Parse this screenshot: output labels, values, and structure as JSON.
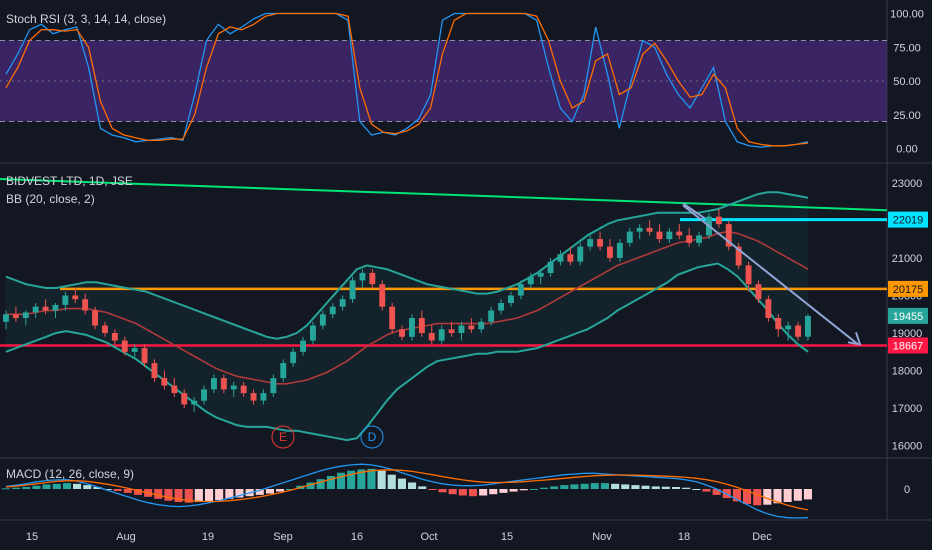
{
  "chart_data": [
    {
      "panel": "stoch_rsi",
      "type": "line",
      "title": "Stoch RSI (3, 3, 14, 14, close)",
      "ylim": [
        -10,
        110
      ],
      "yticks": [
        "100.00",
        "75.00",
        "50.00",
        "25.00",
        "0.00"
      ],
      "band": {
        "upper": 80,
        "lower": 20,
        "color": "#4a2a7a"
      },
      "series": [
        {
          "color": "#2196f3",
          "values": [
            55,
            70,
            88,
            92,
            85,
            88,
            90,
            60,
            15,
            10,
            8,
            5,
            6,
            7,
            8,
            6,
            40,
            80,
            92,
            85,
            90,
            96,
            100,
            100,
            100,
            100,
            100,
            100,
            100,
            95,
            20,
            10,
            12,
            10,
            15,
            22,
            40,
            95,
            100,
            100,
            100,
            100,
            100,
            100,
            100,
            95,
            60,
            30,
            20,
            40,
            90,
            55,
            15,
            50,
            80,
            75,
            55,
            40,
            30,
            45,
            60,
            20,
            5,
            2,
            1,
            2,
            2,
            3,
            5
          ]
        },
        {
          "color": "#ff6d00",
          "values": [
            45,
            60,
            80,
            88,
            88,
            87,
            88,
            75,
            35,
            15,
            10,
            8,
            6,
            6,
            7,
            7,
            25,
            60,
            85,
            90,
            88,
            92,
            98,
            100,
            100,
            100,
            100,
            100,
            100,
            98,
            45,
            18,
            12,
            11,
            13,
            18,
            30,
            70,
            95,
            100,
            100,
            100,
            100,
            100,
            100,
            98,
            80,
            50,
            30,
            35,
            65,
            70,
            40,
            45,
            70,
            78,
            65,
            50,
            38,
            40,
            55,
            45,
            15,
            5,
            3,
            2,
            2,
            3,
            4
          ]
        }
      ]
    },
    {
      "panel": "price",
      "type": "candlestick",
      "title": "BIDVEST LTD, 1D, JSE",
      "subtitle": "BB (20, close, 2)",
      "ylim": [
        15700,
        23500
      ],
      "yticks": [
        "23000",
        "22000",
        "21000",
        "20000",
        "19000",
        "18000",
        "17000",
        "16000"
      ],
      "candles": [
        [
          19300,
          19600,
          19100,
          19500
        ],
        [
          19500,
          19700,
          19300,
          19400
        ],
        [
          19400,
          19600,
          19200,
          19550
        ],
        [
          19550,
          19800,
          19400,
          19700
        ],
        [
          19700,
          19900,
          19500,
          19600
        ],
        [
          19600,
          19800,
          19400,
          19750
        ],
        [
          19750,
          20100,
          19600,
          20000
        ],
        [
          20000,
          20200,
          19800,
          19900
        ],
        [
          19900,
          20050,
          19500,
          19600
        ],
        [
          19600,
          19700,
          19100,
          19200
        ],
        [
          19200,
          19300,
          18900,
          19000
        ],
        [
          19000,
          19100,
          18700,
          18800
        ],
        [
          18800,
          18900,
          18400,
          18500
        ],
        [
          18500,
          18700,
          18300,
          18600
        ],
        [
          18600,
          18700,
          18100,
          18200
        ],
        [
          18200,
          18300,
          17700,
          17800
        ],
        [
          17800,
          18000,
          17500,
          17600
        ],
        [
          17600,
          17800,
          17300,
          17400
        ],
        [
          17400,
          17500,
          17000,
          17100
        ],
        [
          17100,
          17300,
          16900,
          17200
        ],
        [
          17200,
          17600,
          17100,
          17500
        ],
        [
          17500,
          17900,
          17400,
          17800
        ],
        [
          17800,
          17900,
          17400,
          17500
        ],
        [
          17500,
          17700,
          17300,
          17600
        ],
        [
          17600,
          17700,
          17300,
          17400
        ],
        [
          17400,
          17500,
          17100,
          17200
        ],
        [
          17200,
          17500,
          17100,
          17400
        ],
        [
          17400,
          17900,
          17300,
          17800
        ],
        [
          17800,
          18300,
          17700,
          18200
        ],
        [
          18200,
          18600,
          18100,
          18500
        ],
        [
          18500,
          18900,
          18400,
          18800
        ],
        [
          18800,
          19300,
          18700,
          19200
        ],
        [
          19200,
          19600,
          19100,
          19500
        ],
        [
          19500,
          19800,
          19400,
          19700
        ],
        [
          19700,
          20000,
          19600,
          19900
        ],
        [
          19900,
          20500,
          19800,
          20400
        ],
        [
          20400,
          20700,
          20200,
          20600
        ],
        [
          20600,
          20700,
          20200,
          20300
        ],
        [
          20300,
          20400,
          19600,
          19700
        ],
        [
          19700,
          19800,
          19000,
          19100
        ],
        [
          19100,
          19200,
          18800,
          18900
        ],
        [
          18900,
          19500,
          18800,
          19400
        ],
        [
          19400,
          19600,
          18900,
          19000
        ],
        [
          19000,
          19200,
          18700,
          18800
        ],
        [
          18800,
          19200,
          18700,
          19100
        ],
        [
          19100,
          19300,
          18900,
          19000
        ],
        [
          19000,
          19300,
          18800,
          19200
        ],
        [
          19200,
          19400,
          19000,
          19100
        ],
        [
          19100,
          19400,
          19000,
          19300
        ],
        [
          19300,
          19700,
          19200,
          19600
        ],
        [
          19600,
          19900,
          19500,
          19800
        ],
        [
          19800,
          20100,
          19700,
          20000
        ],
        [
          20000,
          20400,
          19900,
          20300
        ],
        [
          20300,
          20600,
          20200,
          20500
        ],
        [
          20500,
          20700,
          20300,
          20600
        ],
        [
          20600,
          21000,
          20500,
          20900
        ],
        [
          20900,
          21200,
          20800,
          21100
        ],
        [
          21100,
          21300,
          20800,
          20900
        ],
        [
          20900,
          21400,
          20800,
          21300
        ],
        [
          21300,
          21600,
          21200,
          21500
        ],
        [
          21500,
          21700,
          21200,
          21300
        ],
        [
          21300,
          21500,
          20900,
          21000
        ],
        [
          21000,
          21500,
          20900,
          21400
        ],
        [
          21400,
          21800,
          21300,
          21700
        ],
        [
          21700,
          21900,
          21500,
          21800
        ],
        [
          21800,
          22000,
          21600,
          21700
        ],
        [
          21700,
          21900,
          21400,
          21500
        ],
        [
          21500,
          21800,
          21400,
          21700
        ],
        [
          21700,
          21900,
          21500,
          21600
        ],
        [
          21600,
          21800,
          21300,
          21400
        ],
        [
          21400,
          21700,
          21300,
          21600
        ],
        [
          21600,
          22200,
          21500,
          22100
        ],
        [
          22100,
          22300,
          21800,
          21900
        ],
        [
          21900,
          22000,
          21200,
          21300
        ],
        [
          21300,
          21400,
          20700,
          20800
        ],
        [
          20800,
          20900,
          20100,
          20300
        ],
        [
          20300,
          20400,
          19800,
          19900
        ],
        [
          19900,
          20000,
          19300,
          19400
        ],
        [
          19400,
          19500,
          18900,
          19100
        ],
        [
          19100,
          19300,
          18800,
          19200
        ],
        [
          19200,
          19300,
          18800,
          18900
        ],
        [
          18900,
          19500,
          18800,
          19455
        ]
      ],
      "bb_upper": [
        20500,
        20400,
        20300,
        20250,
        20200,
        20200,
        20250,
        20300,
        20350,
        20350,
        20300,
        20250,
        20200,
        20150,
        20100,
        20000,
        19900,
        19800,
        19700,
        19600,
        19500,
        19400,
        19300,
        19200,
        19100,
        19000,
        18900,
        18850,
        18900,
        19000,
        19200,
        19500,
        19800,
        20100,
        20400,
        20700,
        20800,
        20750,
        20700,
        20600,
        20500,
        20400,
        20300,
        20250,
        20200,
        20150,
        20100,
        20050,
        20050,
        20100,
        20200,
        20300,
        20450,
        20600,
        20800,
        21000,
        21200,
        21400,
        21600,
        21750,
        21900,
        22000,
        22050,
        22100,
        22150,
        22200,
        22200,
        22200,
        22200,
        22200,
        22250,
        22300,
        22400,
        22500,
        22600,
        22700,
        22750,
        22750,
        22700,
        22650,
        22600
      ],
      "bb_middle": [
        19500,
        19500,
        19500,
        19550,
        19600,
        19600,
        19650,
        19650,
        19650,
        19600,
        19550,
        19450,
        19350,
        19250,
        19100,
        18950,
        18800,
        18650,
        18500,
        18350,
        18200,
        18050,
        17950,
        17850,
        17800,
        17750,
        17700,
        17650,
        17650,
        17700,
        17750,
        17850,
        17950,
        18100,
        18250,
        18450,
        18650,
        18800,
        18950,
        19050,
        19100,
        19150,
        19200,
        19250,
        19250,
        19250,
        19250,
        19250,
        19250,
        19300,
        19350,
        19400,
        19500,
        19600,
        19750,
        19900,
        20050,
        20200,
        20350,
        20500,
        20650,
        20800,
        20900,
        21000,
        21100,
        21200,
        21300,
        21400,
        21450,
        21500,
        21550,
        21650,
        21700,
        21650,
        21550,
        21450,
        21300,
        21150,
        21000,
        20850,
        20700
      ],
      "bb_lower": [
        18500,
        18600,
        18700,
        18800,
        18900,
        19000,
        19050,
        19000,
        18950,
        18850,
        18750,
        18600,
        18450,
        18300,
        18100,
        17900,
        17700,
        17500,
        17300,
        17100,
        16900,
        16750,
        16650,
        16550,
        16500,
        16500,
        16500,
        16450,
        16400,
        16400,
        16350,
        16300,
        16250,
        16200,
        16150,
        16200,
        16500,
        16850,
        17200,
        17500,
        17700,
        17900,
        18100,
        18250,
        18300,
        18350,
        18400,
        18450,
        18450,
        18500,
        18500,
        18500,
        18550,
        18600,
        18700,
        18800,
        18900,
        19000,
        19100,
        19250,
        19400,
        19600,
        19750,
        19900,
        20050,
        20200,
        20350,
        20550,
        20650,
        20750,
        20800,
        20850,
        20700,
        20500,
        20200,
        19900,
        19600,
        19250,
        18950,
        18700,
        18500
      ],
      "levels": [
        {
          "value": 22019,
          "label": "22019",
          "color": "#00e5ff"
        },
        {
          "value": 20175,
          "label": "20175",
          "color": "#ff9800"
        },
        {
          "value": 19455,
          "label": "19455",
          "color": "#26a69a"
        },
        {
          "value": 18667,
          "label": "18667",
          "color": "#ff1744"
        }
      ],
      "trendline_color": "#00e676",
      "wave_labels": [
        "E",
        "D"
      ]
    },
    {
      "panel": "macd",
      "type": "bar",
      "title": "MACD (12, 26, close, 9)",
      "ylim": [
        -230,
        230
      ],
      "yticks": [
        "0"
      ],
      "histogram": [
        5,
        10,
        15,
        25,
        35,
        40,
        45,
        40,
        30,
        15,
        0,
        -15,
        -30,
        -45,
        -60,
        -75,
        -90,
        -100,
        -105,
        -100,
        -95,
        -85,
        -75,
        -65,
        -55,
        -45,
        -35,
        -20,
        0,
        25,
        50,
        75,
        100,
        125,
        140,
        150,
        155,
        140,
        110,
        80,
        50,
        20,
        -5,
        -25,
        -40,
        -50,
        -55,
        -50,
        -40,
        -30,
        -20,
        -10,
        0,
        10,
        20,
        30,
        35,
        40,
        45,
        45,
        40,
        35,
        30,
        25,
        20,
        18,
        15,
        10,
        0,
        -20,
        -45,
        -70,
        -95,
        -115,
        -125,
        -120,
        -110,
        -100,
        -90,
        -80
      ],
      "macd_line": [
        20,
        30,
        40,
        55,
        65,
        70,
        72,
        60,
        40,
        15,
        -10,
        -35,
        -60,
        -85,
        -105,
        -120,
        -130,
        -135,
        -130,
        -120,
        -105,
        -90,
        -70,
        -50,
        -30,
        -10,
        15,
        40,
        65,
        90,
        115,
        140,
        160,
        175,
        185,
        190,
        185,
        170,
        150,
        125,
        100,
        75,
        55,
        40,
        30,
        25,
        25,
        30,
        40,
        50,
        60,
        70,
        80,
        90,
        100,
        110,
        115,
        120,
        120,
        115,
        110,
        105,
        100,
        95,
        90,
        85,
        80,
        70,
        55,
        30,
        0,
        -40,
        -80,
        -120,
        -160,
        -190,
        -210,
        -220,
        -222,
        -220
      ],
      "signal_line": [
        15,
        22,
        30,
        40,
        50,
        58,
        63,
        63,
        58,
        48,
        36,
        22,
        6,
        -12,
        -30,
        -48,
        -64,
        -78,
        -88,
        -94,
        -96,
        -95,
        -90,
        -82,
        -72,
        -60,
        -45,
        -28,
        -9,
        11,
        32,
        53,
        74,
        94,
        112,
        128,
        140,
        146,
        147,
        143,
        135,
        123,
        110,
        95,
        82,
        70,
        60,
        52,
        50,
        50,
        52,
        56,
        62,
        68,
        75,
        82,
        90,
        96,
        102,
        105,
        107,
        107,
        106,
        104,
        101,
        98,
        94,
        89,
        82,
        71,
        57,
        37,
        13,
        -15,
        -44,
        -73,
        -100,
        -125,
        -145,
        -160
      ],
      "colors": {
        "macd": "#2196f3",
        "signal": "#ff6d00"
      }
    }
  ],
  "x_axis": {
    "labels": [
      "15",
      "Aug",
      "19",
      "Sep",
      "16",
      "Oct",
      "15",
      "Nov",
      "18",
      "Dec"
    ]
  }
}
